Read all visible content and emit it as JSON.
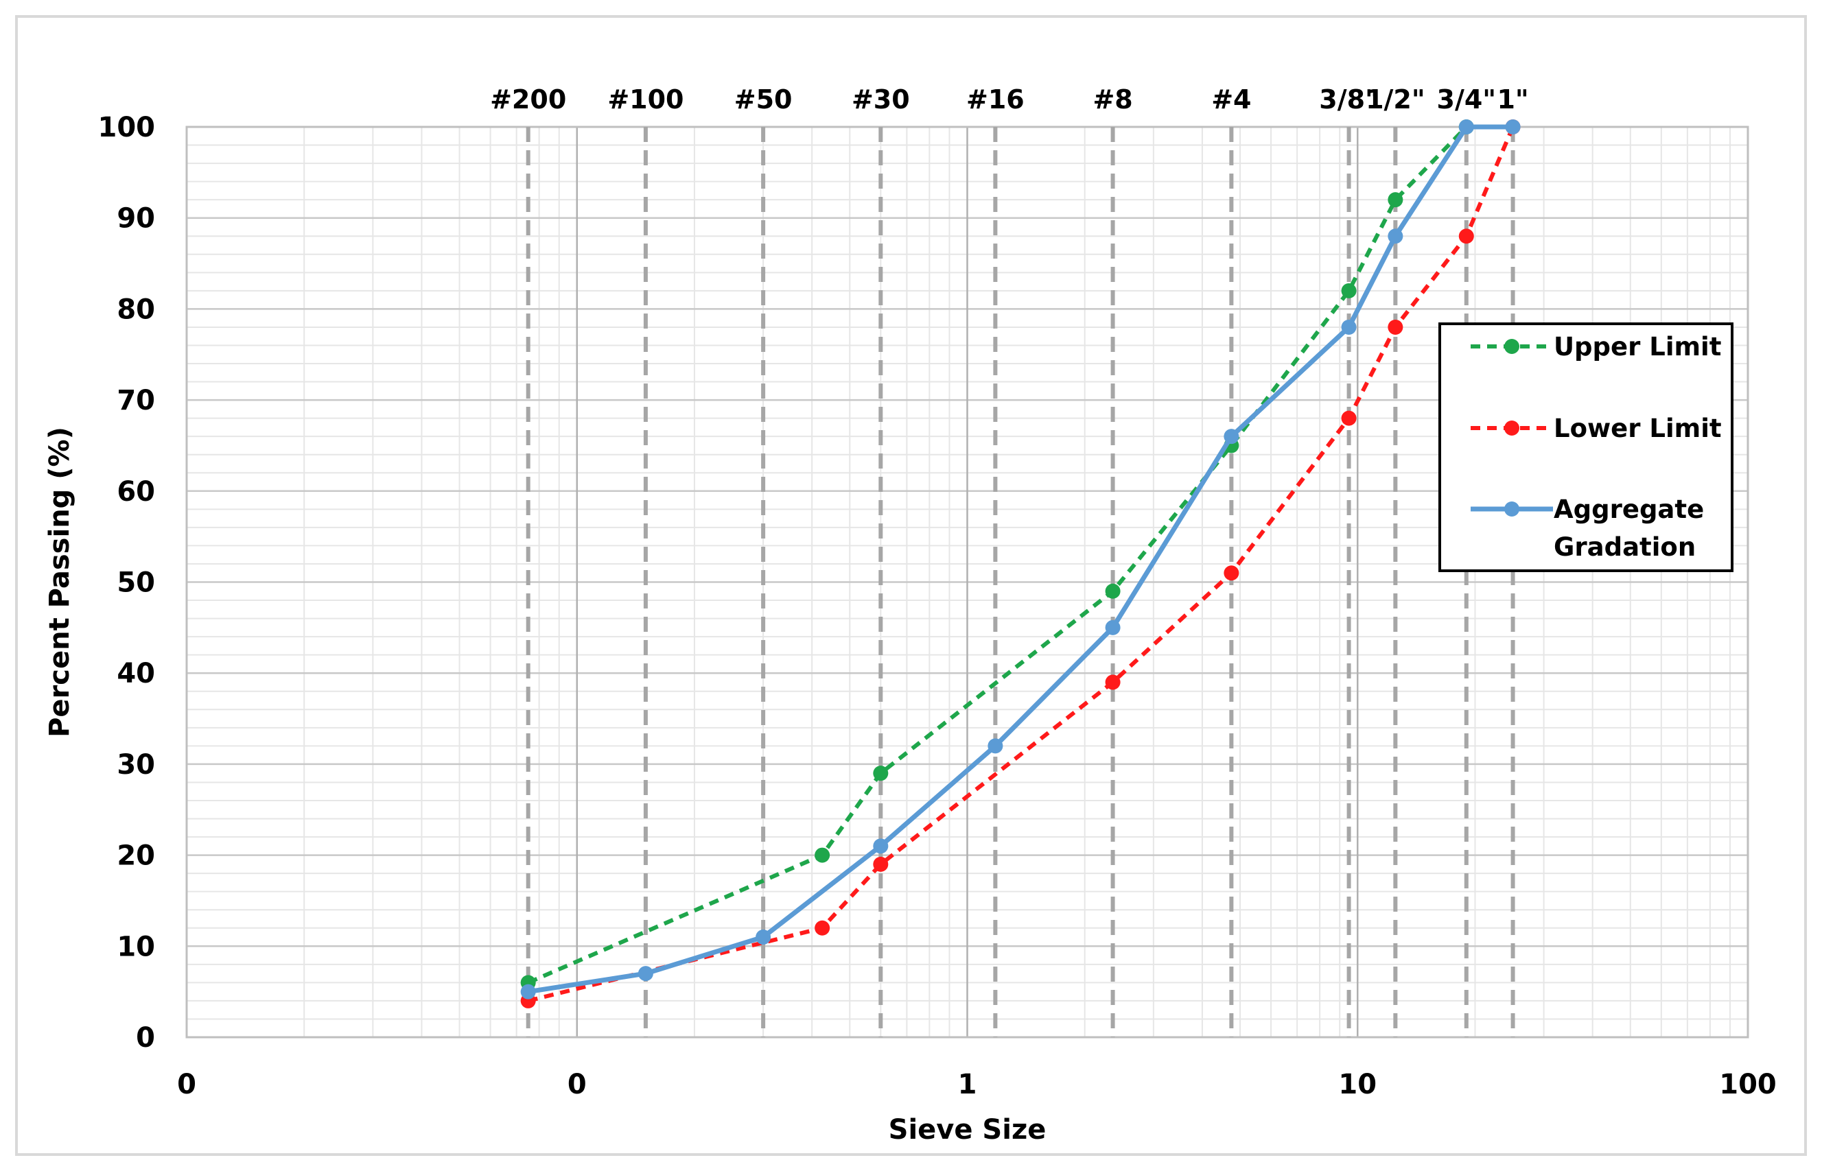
{
  "chart_data": {
    "type": "line",
    "title": "",
    "xlabel": "Sieve Size",
    "ylabel": "Percent Passing (%)",
    "x_scale": "log",
    "xlim": [
      0.01,
      100
    ],
    "ylim": [
      0,
      100
    ],
    "x_tick_labels": [
      "0",
      "0",
      "1",
      "10",
      "100"
    ],
    "y_ticks": [
      0,
      10,
      20,
      30,
      40,
      50,
      60,
      70,
      80,
      90,
      100
    ],
    "grid": true,
    "legend_position": "right",
    "sieves": [
      {
        "label": "#200",
        "size": 0.075
      },
      {
        "label": "#100",
        "size": 0.15
      },
      {
        "label": "#50",
        "size": 0.3
      },
      {
        "label": "#30",
        "size": 0.6
      },
      {
        "label": "#16",
        "size": 1.18
      },
      {
        "label": "#8",
        "size": 2.36
      },
      {
        "label": "#4",
        "size": 4.75
      },
      {
        "label": "3/8\"",
        "size": 9.5
      },
      {
        "label": "1/2\"",
        "size": 12.5
      },
      {
        "label": "3/4\"",
        "size": 19
      },
      {
        "label": "1\"",
        "size": 25
      }
    ],
    "series": [
      {
        "name": "Upper Limit",
        "color": "#1ea64b",
        "style": "dashed",
        "x": [
          0.075,
          0.425,
          0.6,
          2.36,
          4.75,
          9.5,
          12.5,
          19
        ],
        "y": [
          6,
          20,
          29,
          49,
          65,
          82,
          92,
          100
        ]
      },
      {
        "name": "Lower Limit",
        "color": "#ff1a1a",
        "style": "dashed",
        "x": [
          0.075,
          0.425,
          0.6,
          2.36,
          4.75,
          9.5,
          12.5,
          19,
          25
        ],
        "y": [
          4,
          12,
          19,
          39,
          51,
          68,
          78,
          88,
          100
        ]
      },
      {
        "name": "Aggregate Gradation",
        "color": "#5b9bd5",
        "style": "solid",
        "x": [
          0.075,
          0.15,
          0.3,
          0.6,
          1.18,
          2.36,
          4.75,
          9.5,
          12.5,
          19,
          25
        ],
        "y": [
          5,
          7,
          11,
          21,
          32,
          45,
          66,
          78,
          88,
          100,
          100
        ]
      }
    ],
    "legend": [
      {
        "lines": [
          "Upper Limit"
        ]
      },
      {
        "lines": [
          "Lower Limit"
        ]
      },
      {
        "lines": [
          "Aggregate",
          "Gradation"
        ]
      }
    ]
  }
}
